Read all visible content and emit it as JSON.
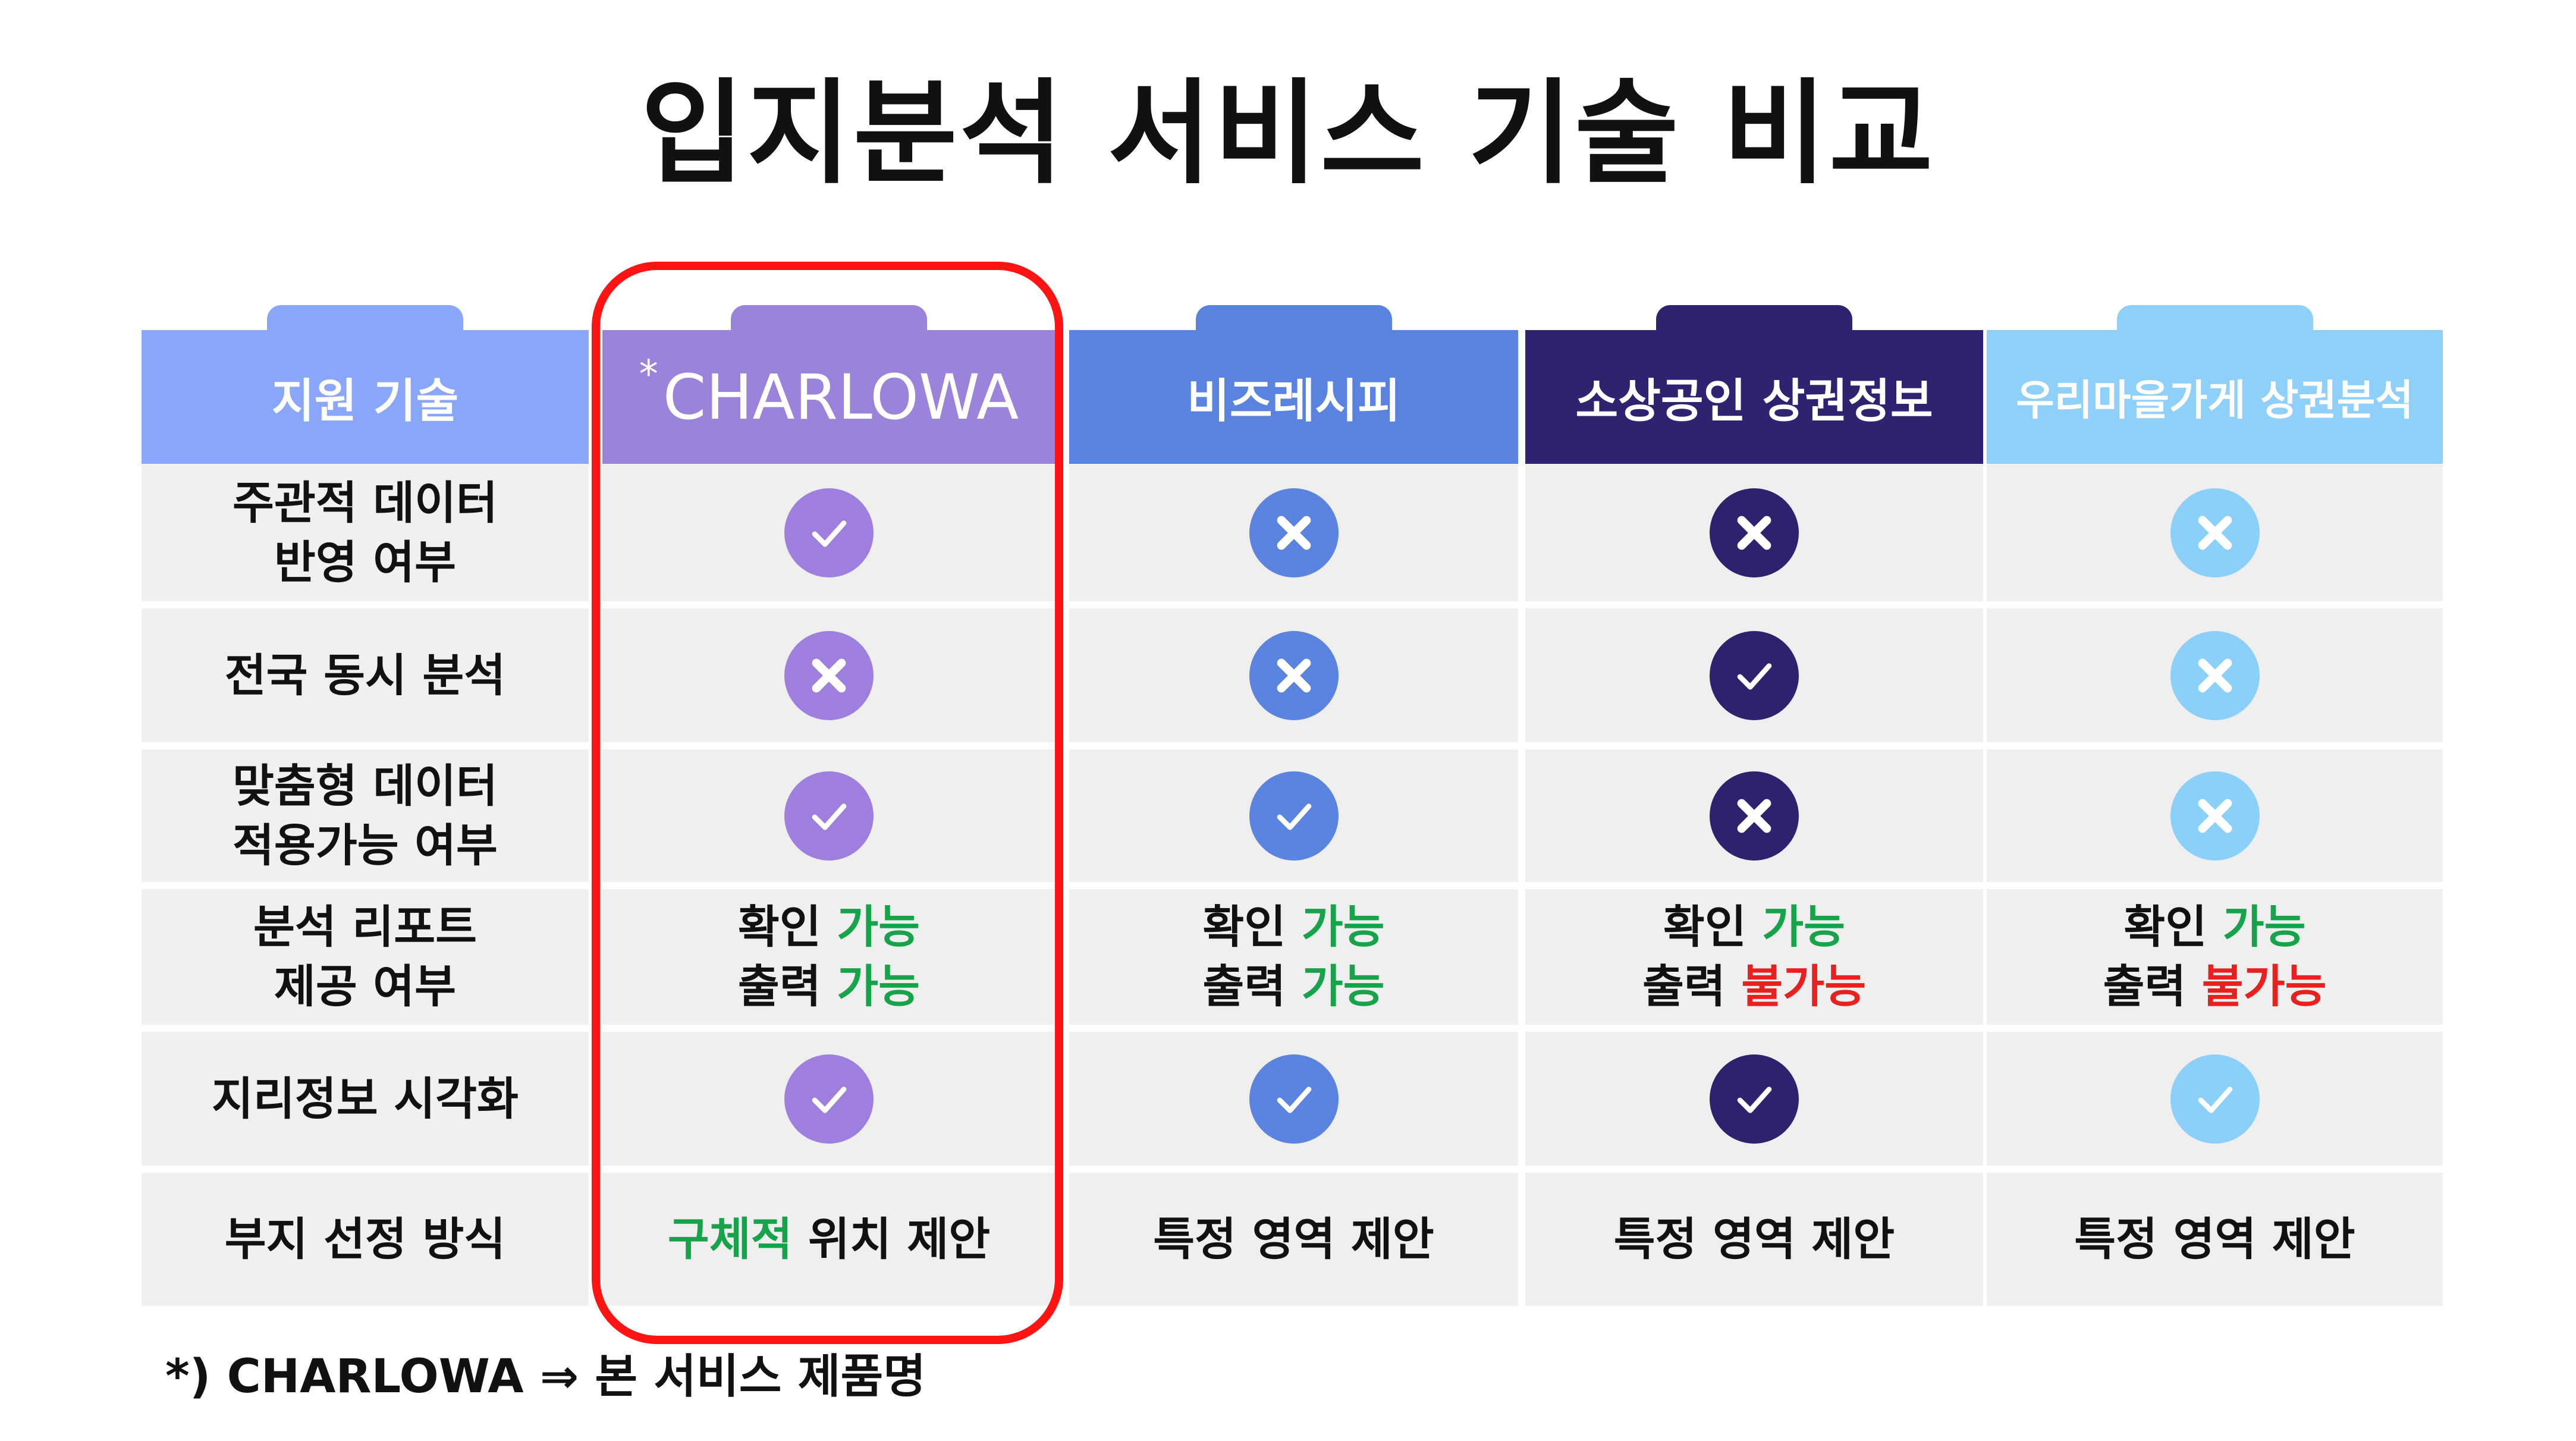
{
  "title": "입지분석 서비스 기술 비교",
  "header": {
    "support_tech": "지원 기술",
    "charlowa_mark": "*",
    "charlowa": "CHARLOWA",
    "bizrecipe": "비즈레시피",
    "sosang": "소상공인 상권정보",
    "urimaeul": "우리마을가게 상권분석"
  },
  "colors": {
    "header_label": "#8aa6f8",
    "header_charlowa": "#9b82db",
    "header_bizrecipe": "#5a83df",
    "header_sosang": "#2f2271",
    "header_urimaeul": "#8fd0fb",
    "icon_charlowa": "#9f7fdd",
    "icon_bizrecipe": "#5a84df",
    "icon_sosang": "#2e226f",
    "icon_urimaeul": "#8ad0f8",
    "available_green": "#16a34a",
    "unavailable_red": "#e8201f",
    "highlight_border": "#ff1313"
  },
  "rows": [
    {
      "label_line1": "주관적 데이터",
      "label_line2": "반영 여부",
      "charlowa_icon": "check-icon",
      "bizrecipe_icon": "x-icon",
      "sosang_icon": "x-icon",
      "urimaeul_icon": "x-icon"
    },
    {
      "label_line1": "전국 동시 분석",
      "charlowa_icon": "x-icon",
      "bizrecipe_icon": "x-icon",
      "sosang_icon": "check-icon",
      "urimaeul_icon": "x-icon"
    },
    {
      "label_line1": "맞춤형 데이터",
      "label_line2": "적용가능 여부",
      "charlowa_icon": "check-icon",
      "bizrecipe_icon": "check-icon",
      "sosang_icon": "x-icon",
      "urimaeul_icon": "x-icon"
    },
    {
      "label_line1": "분석 리포트",
      "label_line2": "제공 여부",
      "confirm": "확인",
      "print": "출력",
      "possible": "가능",
      "impossible": "불가능",
      "charlowa_print_possible": true,
      "bizrecipe_print_possible": true,
      "sosang_print_possible": false,
      "urimaeul_print_possible": false
    },
    {
      "label_line1": "지리정보 시각화",
      "charlowa_icon": "check-icon",
      "bizrecipe_icon": "check-icon",
      "sosang_icon": "check-icon",
      "urimaeul_icon": "check-icon"
    },
    {
      "label_line1": "부지 선정 방식",
      "charlowa_green": "구체적",
      "charlowa_rest": " 위치 제안",
      "others": "특정 영역 제안"
    }
  ],
  "footnote": "*) CHARLOWA ⇒ 본 서비스 제품명"
}
